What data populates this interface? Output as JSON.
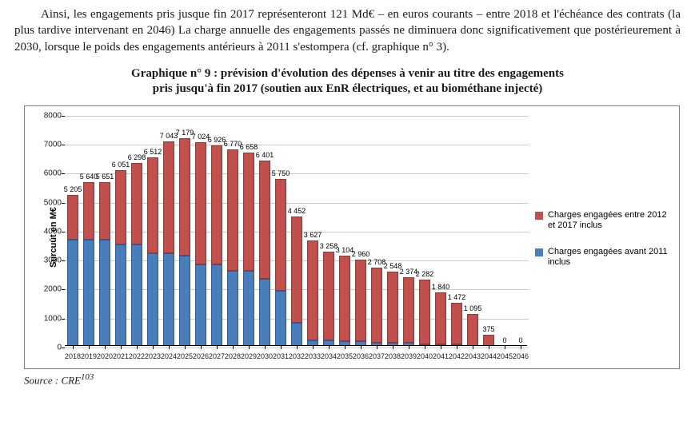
{
  "paragraph": "Ainsi, les engagements pris jusque fin 2017 représenteront 121 Md€ – en euros courants – entre 2018 et l'échéance des contrats (la plus tardive intervenant en 2046) La charge annuelle des engagements passés ne diminuera donc significativement que postérieurement à 2030, lorsque le poids des engagements antérieurs à 2011 s'estompera (cf. graphique n° 3).",
  "figure_title_l1": "Graphique n° 9 : prévision d'évolution des dépenses à venir au titre des engagements",
  "figure_title_l2": "pris jusqu'à fin 2017 (soutien aux EnR électriques, et au biométhane injecté)",
  "source_label": "Source : CRE",
  "source_sup": "103",
  "chart": {
    "type": "stacked-bar",
    "y_label": "Surcuût en M€",
    "ylim": [
      0,
      8000
    ],
    "ytick_step": 1000,
    "grid_color": "#c9c9c9",
    "frame_color": "#7f7f7f",
    "background": "#ffffff",
    "colors": {
      "before2011": "#4a7ebb",
      "from2012": "#c0504d"
    },
    "legend": {
      "from2012": "Charges engagées entre 2012 et 2017 inclus",
      "before2011": "Charges engagées avant 2011 inclus"
    },
    "label_font": "Arial",
    "label_fontsize": 10,
    "bars": [
      {
        "year": "2018",
        "before2011": 3650,
        "from2012": 1555,
        "total": 5205,
        "total_label": "5 205"
      },
      {
        "year": "2019",
        "before2011": 3650,
        "from2012": 1990,
        "total": 5640,
        "total_label": "5 640"
      },
      {
        "year": "2020",
        "before2011": 3650,
        "from2012": 2001,
        "total": 5651,
        "total_label": "5 651"
      },
      {
        "year": "2021",
        "before2011": 3500,
        "from2012": 2551,
        "total": 6051,
        "total_label": "6 051"
      },
      {
        "year": "2022",
        "before2011": 3500,
        "from2012": 2798,
        "total": 6298,
        "total_label": "6 298"
      },
      {
        "year": "2023",
        "before2011": 3200,
        "from2012": 3312,
        "total": 6512,
        "total_label": "6 512"
      },
      {
        "year": "2024",
        "before2011": 3200,
        "from2012": 3843,
        "total": 7043,
        "total_label": "7 043"
      },
      {
        "year": "2025",
        "before2011": 3100,
        "from2012": 4079,
        "total": 7179,
        "total_label": "7 179"
      },
      {
        "year": "2026",
        "before2011": 2800,
        "from2012": 4224,
        "total": 7024,
        "total_label": "7 024"
      },
      {
        "year": "2027",
        "before2011": 2800,
        "from2012": 4126,
        "total": 6926,
        "total_label": "6 926"
      },
      {
        "year": "2028",
        "before2011": 2600,
        "from2012": 4170,
        "total": 6770,
        "total_label": "6 770"
      },
      {
        "year": "2029",
        "before2011": 2600,
        "from2012": 4058,
        "total": 6658,
        "total_label": "6 658"
      },
      {
        "year": "2030",
        "before2011": 2300,
        "from2012": 4101,
        "total": 6401,
        "total_label": "6 401"
      },
      {
        "year": "2031",
        "before2011": 1900,
        "from2012": 3850,
        "total": 5750,
        "total_label": "5 750"
      },
      {
        "year": "2032",
        "before2011": 800,
        "from2012": 3652,
        "total": 4452,
        "total_label": "4 452"
      },
      {
        "year": "2033",
        "before2011": 200,
        "from2012": 3427,
        "total": 3627,
        "total_label": "3 627"
      },
      {
        "year": "2034",
        "before2011": 200,
        "from2012": 3058,
        "total": 3258,
        "total_label": "3 258"
      },
      {
        "year": "2035",
        "before2011": 150,
        "from2012": 2954,
        "total": 3104,
        "total_label": "3 104"
      },
      {
        "year": "2036",
        "before2011": 150,
        "from2012": 2810,
        "total": 2960,
        "total_label": "2 960"
      },
      {
        "year": "2037",
        "before2011": 100,
        "from2012": 2608,
        "total": 2708,
        "total_label": "2 708"
      },
      {
        "year": "2038",
        "before2011": 100,
        "from2012": 2448,
        "total": 2548,
        "total_label": "2 548"
      },
      {
        "year": "2039",
        "before2011": 100,
        "from2012": 2274,
        "total": 2374,
        "total_label": "2 374"
      },
      {
        "year": "2040",
        "before2011": 50,
        "from2012": 2232,
        "total": 2282,
        "total_label": "2 282"
      },
      {
        "year": "2041",
        "before2011": 50,
        "from2012": 1790,
        "total": 1840,
        "total_label": "1 840"
      },
      {
        "year": "2042",
        "before2011": 50,
        "from2012": 1422,
        "total": 1472,
        "total_label": "1 472"
      },
      {
        "year": "2043",
        "before2011": 0,
        "from2012": 1095,
        "total": 1095,
        "total_label": "1 095"
      },
      {
        "year": "2044",
        "before2011": 0,
        "from2012": 375,
        "total": 375,
        "total_label": "375"
      },
      {
        "year": "2045",
        "before2011": 0,
        "from2012": 0,
        "total": 0,
        "total_label": "0"
      },
      {
        "year": "2046",
        "before2011": 0,
        "from2012": 0,
        "total": 0,
        "total_label": "0"
      }
    ]
  }
}
